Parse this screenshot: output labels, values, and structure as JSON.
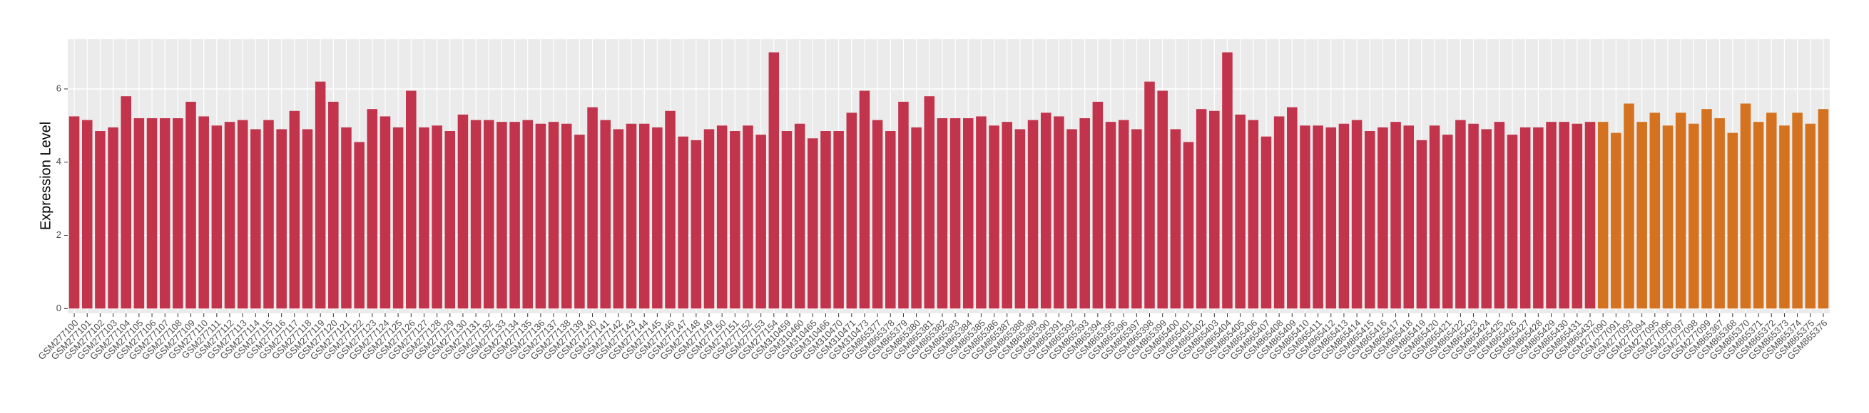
{
  "chart_data": {
    "type": "bar",
    "y_label": "Expression Level",
    "categories": [
      "GSM277100",
      "GSM277101",
      "GSM277102",
      "GSM277103",
      "GSM277104",
      "GSM277105",
      "GSM277106",
      "GSM277107",
      "GSM277108",
      "GSM277109",
      "GSM277110",
      "GSM277111",
      "GSM277112",
      "GSM277113",
      "GSM277114",
      "GSM277115",
      "GSM277116",
      "GSM277117",
      "GSM277118",
      "GSM277119",
      "GSM277120",
      "GSM277121",
      "GSM277122",
      "GSM277123",
      "GSM277124",
      "GSM277125",
      "GSM277126",
      "GSM277127",
      "GSM277128",
      "GSM277129",
      "GSM277130",
      "GSM277131",
      "GSM277132",
      "GSM277133",
      "GSM277134",
      "GSM277135",
      "GSM277136",
      "GSM277137",
      "GSM277138",
      "GSM277139",
      "GSM277140",
      "GSM277141",
      "GSM277142",
      "GSM277143",
      "GSM277144",
      "GSM277145",
      "GSM277146",
      "GSM277147",
      "GSM277148",
      "GSM277149",
      "GSM277150",
      "GSM277151",
      "GSM277152",
      "GSM277153",
      "GSM277154",
      "GSM310459",
      "GSM310460",
      "GSM310465",
      "GSM310466",
      "GSM310470",
      "GSM310471",
      "GSM310473",
      "GSM865377",
      "GSM865378",
      "GSM865379",
      "GSM865380",
      "GSM865381",
      "GSM865382",
      "GSM865383",
      "GSM865384",
      "GSM865385",
      "GSM865386",
      "GSM865387",
      "GSM865388",
      "GSM865389",
      "GSM865390",
      "GSM865391",
      "GSM865392",
      "GSM865393",
      "GSM865394",
      "GSM865395",
      "GSM865396",
      "GSM865397",
      "GSM865398",
      "GSM865399",
      "GSM865400",
      "GSM865401",
      "GSM865402",
      "GSM865403",
      "GSM865404",
      "GSM865405",
      "GSM865406",
      "GSM865407",
      "GSM865408",
      "GSM865409",
      "GSM865410",
      "GSM865411",
      "GSM865412",
      "GSM865413",
      "GSM865414",
      "GSM865415",
      "GSM865416",
      "GSM865417",
      "GSM865418",
      "GSM865419",
      "GSM865420",
      "GSM865421",
      "GSM865422",
      "GSM865423",
      "GSM865424",
      "GSM865425",
      "GSM865426",
      "GSM865427",
      "GSM865428",
      "GSM865429",
      "GSM865430",
      "GSM865431",
      "GSM865432",
      "GSM277090",
      "GSM277091",
      "GSM277093",
      "GSM277094",
      "GSM277095",
      "GSM277096",
      "GSM277097",
      "GSM277098",
      "GSM277099",
      "GSM865367",
      "GSM865368",
      "GSM865370",
      "GSM865371",
      "GSM865372",
      "GSM865373",
      "GSM865374",
      "GSM865375",
      "GSM865376"
    ],
    "values": [
      5.25,
      5.15,
      4.85,
      4.95,
      5.8,
      5.2,
      5.2,
      5.2,
      5.2,
      5.65,
      5.25,
      5.0,
      5.1,
      5.15,
      4.9,
      5.15,
      4.9,
      5.4,
      4.9,
      6.2,
      5.65,
      4.95,
      4.55,
      5.45,
      5.25,
      4.95,
      5.95,
      4.95,
      5.0,
      4.85,
      5.3,
      5.15,
      5.15,
      5.1,
      5.1,
      5.15,
      5.05,
      5.1,
      5.05,
      4.75,
      5.5,
      5.15,
      4.9,
      5.05,
      5.05,
      4.95,
      5.4,
      4.7,
      4.6,
      4.9,
      5.0,
      4.85,
      5.0,
      4.75,
      7.0,
      4.85,
      5.05,
      4.65,
      4.85,
      4.85,
      5.35,
      5.95,
      5.15,
      4.85,
      5.65,
      4.95,
      5.8,
      5.2,
      5.2,
      5.2,
      5.25,
      5.0,
      5.1,
      4.9,
      5.15,
      5.35,
      5.25,
      4.9,
      5.2,
      5.65,
      5.1,
      5.15,
      4.9,
      6.2,
      5.95,
      4.9,
      4.55,
      5.45,
      5.4,
      7.0,
      5.3,
      5.15,
      4.7,
      5.25,
      5.5,
      5.0,
      5.0,
      4.95,
      5.05,
      5.15,
      4.85,
      4.95,
      5.1,
      5.0,
      4.6,
      5.0,
      4.75,
      5.15,
      5.05,
      4.9,
      5.1,
      4.75,
      4.95,
      4.95,
      5.1,
      5.1,
      5.05,
      5.1,
      5.1,
      4.8,
      5.6,
      5.1,
      5.35,
      5.0,
      5.35,
      5.05,
      5.45,
      5.2,
      4.8,
      5.6,
      5.1,
      5.35,
      5.0,
      5.35,
      5.05,
      5.45
    ],
    "colors": [
      "#c2334c",
      "#c2334c",
      "#c2334c",
      "#c2334c",
      "#c2334c",
      "#c2334c",
      "#c2334c",
      "#c2334c",
      "#c2334c",
      "#c2334c",
      "#c2334c",
      "#c2334c",
      "#c2334c",
      "#c2334c",
      "#c2334c",
      "#c2334c",
      "#c2334c",
      "#c2334c",
      "#c2334c",
      "#c2334c",
      "#c2334c",
      "#c2334c",
      "#c2334c",
      "#c2334c",
      "#c2334c",
      "#c2334c",
      "#c2334c",
      "#c2334c",
      "#c2334c",
      "#c2334c",
      "#c2334c",
      "#c2334c",
      "#c2334c",
      "#c2334c",
      "#c2334c",
      "#c2334c",
      "#c2334c",
      "#c2334c",
      "#c2334c",
      "#c2334c",
      "#c2334c",
      "#c2334c",
      "#c2334c",
      "#c2334c",
      "#c2334c",
      "#c2334c",
      "#c2334c",
      "#c2334c",
      "#c2334c",
      "#c2334c",
      "#c2334c",
      "#c2334c",
      "#c2334c",
      "#c2334c",
      "#c2334c",
      "#c2334c",
      "#c2334c",
      "#c2334c",
      "#c2334c",
      "#c2334c",
      "#c2334c",
      "#c2334c",
      "#c2334c",
      "#c2334c",
      "#c2334c",
      "#c2334c",
      "#c2334c",
      "#c2334c",
      "#c2334c",
      "#c2334c",
      "#c2334c",
      "#c2334c",
      "#c2334c",
      "#c2334c",
      "#c2334c",
      "#c2334c",
      "#c2334c",
      "#c2334c",
      "#c2334c",
      "#c2334c",
      "#c2334c",
      "#c2334c",
      "#c2334c",
      "#c2334c",
      "#c2334c",
      "#c2334c",
      "#c2334c",
      "#c2334c",
      "#c2334c",
      "#c2334c",
      "#c2334c",
      "#c2334c",
      "#c2334c",
      "#c2334c",
      "#c2334c",
      "#c2334c",
      "#c2334c",
      "#c2334c",
      "#c2334c",
      "#c2334c",
      "#c2334c",
      "#c2334c",
      "#c2334c",
      "#c2334c",
      "#c2334c",
      "#c2334c",
      "#c2334c",
      "#c2334c",
      "#c2334c",
      "#c2334c",
      "#c2334c",
      "#c2334c",
      "#c2334c",
      "#c2334c",
      "#c2334c",
      "#c2334c",
      "#c2334c",
      "#c2334c",
      "#d4721f",
      "#d4721f",
      "#d4721f",
      "#d4721f",
      "#d4721f",
      "#d4721f",
      "#d4721f",
      "#d4721f",
      "#d4721f",
      "#d4721f",
      "#d4721f",
      "#d4721f",
      "#d4721f",
      "#d4721f",
      "#d4721f",
      "#d4721f",
      "#d4721f",
      "#d4721f"
    ],
    "ylim": [
      -0.13,
      7.36
    ],
    "yticks": [
      0,
      2,
      4,
      6
    ],
    "grid": true
  }
}
